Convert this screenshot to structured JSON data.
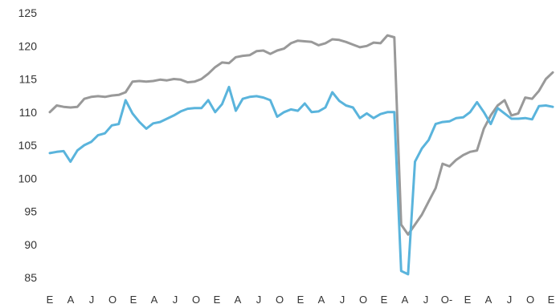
{
  "chart_data": {
    "type": "line",
    "title": "",
    "xlabel": "",
    "ylabel": "",
    "ylim": [
      85,
      125
    ],
    "yticks": [
      85,
      90,
      95,
      100,
      105,
      110,
      115,
      120,
      125
    ],
    "x_tick_labels": [
      "E",
      "A",
      "J",
      "O",
      "E",
      "A",
      "J",
      "O",
      "E",
      "A",
      "J",
      "O",
      "E",
      "A",
      "J",
      "O",
      "E",
      "A",
      "J",
      "O-",
      "E",
      "A",
      "J",
      "O",
      "E"
    ],
    "grid": false,
    "legend": "none",
    "series": [
      {
        "color": "#999999",
        "values": [
          110,
          111,
          110.8,
          110.7,
          110.8,
          112,
          112.3,
          112.4,
          112.3,
          112.5,
          112.6,
          113,
          114.6,
          114.7,
          114.6,
          114.7,
          114.9,
          114.8,
          115,
          114.9,
          114.5,
          114.6,
          115,
          115.8,
          116.8,
          117.5,
          117.4,
          118.3,
          118.5,
          118.6,
          119.2,
          119.3,
          118.8,
          119.3,
          119.6,
          120.4,
          120.8,
          120.7,
          120.6,
          120.1,
          120.4,
          121,
          120.9,
          120.6,
          120.2,
          119.8,
          120,
          120.5,
          120.4,
          121.6,
          121.3,
          93,
          91.5,
          93,
          94.5,
          96.5,
          98.5,
          102.2,
          101.8,
          102.8,
          103.5,
          104,
          104.2,
          107.5,
          109.5,
          111,
          111.8,
          109.5,
          109.8,
          112.2,
          112,
          113.2,
          115,
          116
        ]
      },
      {
        "color": "#5ab4dc",
        "values": [
          103.8,
          104,
          104.1,
          102.5,
          104.2,
          105,
          105.5,
          106.5,
          106.8,
          108,
          108.2,
          111.8,
          109.8,
          108.5,
          107.5,
          108.3,
          108.5,
          109,
          109.5,
          110.1,
          110.5,
          110.6,
          110.6,
          111.8,
          110,
          111.2,
          113.8,
          110.2,
          112,
          112.3,
          112.4,
          112.2,
          111.8,
          109.3,
          110,
          110.4,
          110.2,
          111.3,
          110,
          110.1,
          110.7,
          113,
          111.7,
          111,
          110.7,
          109.1,
          109.8,
          109.1,
          109.7,
          110,
          110,
          86,
          85.5,
          102.5,
          104.5,
          105.8,
          108.2,
          108.5,
          108.6,
          109.1,
          109.2,
          110,
          111.5,
          110,
          108.2,
          110.6,
          109.8,
          109,
          109,
          109.1,
          108.9,
          110.9,
          111,
          110.8
        ]
      }
    ]
  }
}
